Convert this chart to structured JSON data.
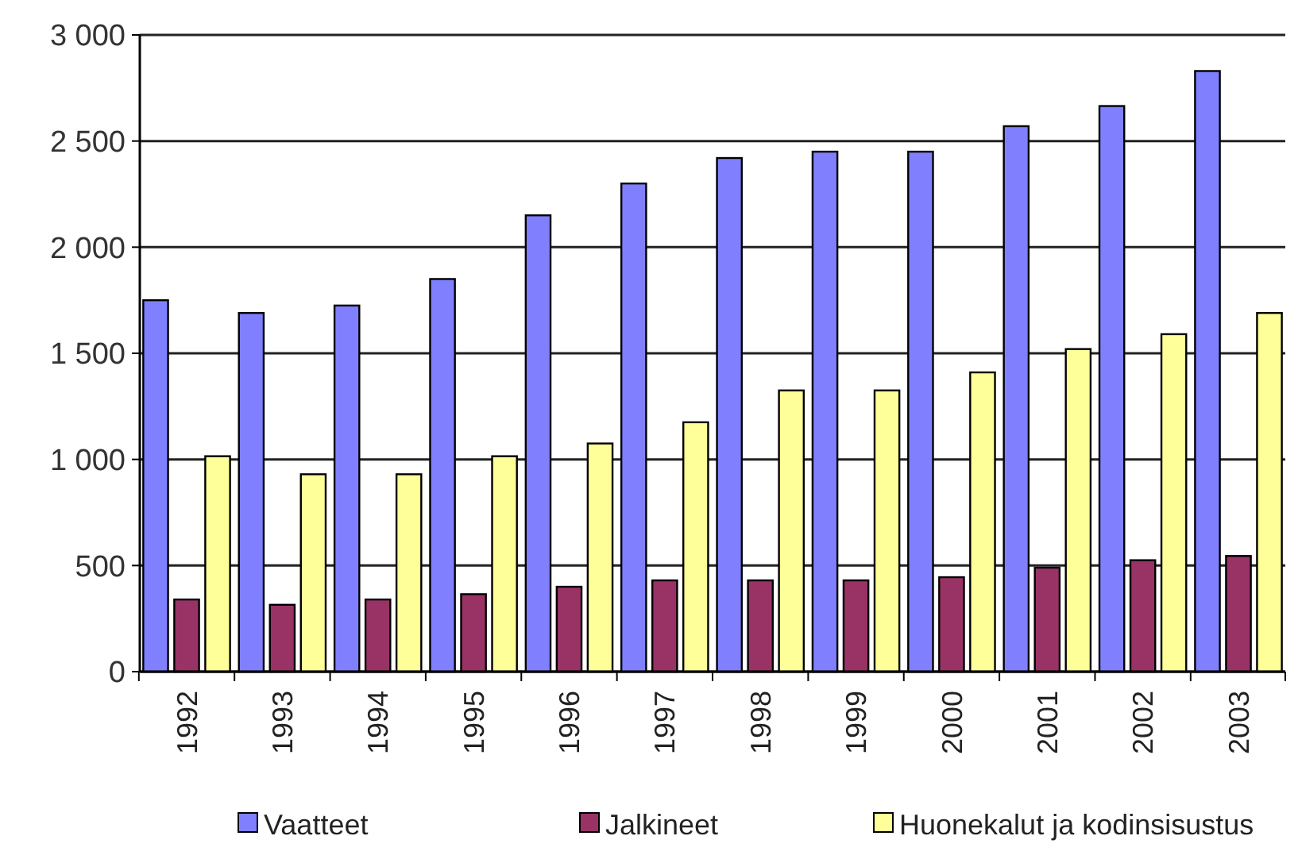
{
  "chart_data": {
    "type": "bar",
    "categories": [
      "1992",
      "1993",
      "1994",
      "1995",
      "1996",
      "1997",
      "1998",
      "1999",
      "2000",
      "2001",
      "2002",
      "2003"
    ],
    "series": [
      {
        "name": "Vaatteet",
        "color": "#8080ff",
        "values": [
          1750,
          1690,
          1725,
          1850,
          2150,
          2300,
          2420,
          2450,
          2450,
          2570,
          2665,
          2830
        ]
      },
      {
        "name": "Jalkineet",
        "color": "#993366",
        "values": [
          340,
          315,
          340,
          365,
          400,
          430,
          430,
          430,
          445,
          490,
          525,
          545
        ]
      },
      {
        "name": "Huonekalut ja kodinsisustus",
        "color": "#ffff99",
        "values": [
          1015,
          930,
          930,
          1015,
          1075,
          1175,
          1325,
          1325,
          1410,
          1520,
          1590,
          1690
        ]
      }
    ],
    "ylim": [
      0,
      3000
    ],
    "yticks": [
      0,
      {
        "value": 500,
        "label": "500"
      },
      {
        "value": 1000,
        "label": "1 000"
      },
      {
        "value": 1500,
        "label": "1 500"
      },
      {
        "value": 2000,
        "label": "2 000"
      },
      {
        "value": 2500,
        "label": "2 500"
      },
      {
        "value": 3000,
        "label": "3 000"
      }
    ],
    "grid": "y",
    "legend": "bottom"
  }
}
